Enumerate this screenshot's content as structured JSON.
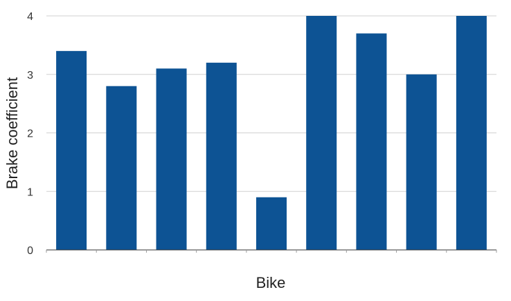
{
  "chart_data": {
    "type": "bar",
    "xlabel": "Bike",
    "ylabel": "Brake coefficient",
    "categories": [
      "",
      "",
      "",
      "",
      "",
      "",
      "",
      "",
      ""
    ],
    "values": [
      3.4,
      2.8,
      3.1,
      3.2,
      0.9,
      4.0,
      3.7,
      3.0,
      4.0
    ],
    "ylim": [
      0,
      4
    ],
    "yticks": [
      0,
      1,
      2,
      3,
      4
    ],
    "grid": true,
    "legend": "none",
    "colors": {
      "bar": "#0d5394",
      "grid": "#d0d0d0",
      "axis": "#333333"
    }
  }
}
